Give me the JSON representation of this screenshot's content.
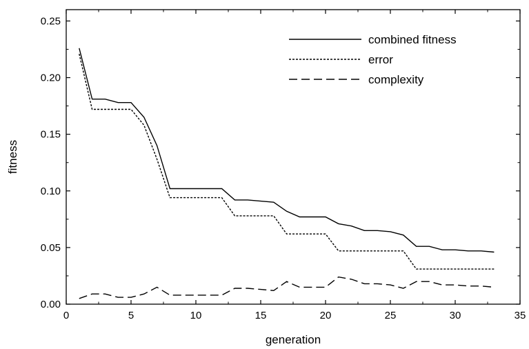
{
  "chart_data": {
    "type": "line",
    "title": "",
    "xlabel": "generation",
    "ylabel": "fitness",
    "xlim": [
      0,
      35
    ],
    "ylim": [
      0,
      0.26
    ],
    "xticks": [
      0,
      5,
      10,
      15,
      20,
      25,
      30,
      35
    ],
    "xtick_labels": [
      "0",
      "5",
      "10",
      "15",
      "20",
      "25",
      "30",
      "35"
    ],
    "yticks": [
      0,
      0.05,
      0.1,
      0.15,
      0.2,
      0.25
    ],
    "ytick_labels": [
      "0.00",
      "0.05",
      "0.10",
      "0.15",
      "0.20",
      "0.25"
    ],
    "grid": false,
    "legend_position": "top-right",
    "x": [
      1,
      2,
      3,
      4,
      5,
      6,
      7,
      8,
      9,
      10,
      11,
      12,
      13,
      14,
      15,
      16,
      17,
      18,
      19,
      20,
      21,
      22,
      23,
      24,
      25,
      26,
      27,
      28,
      29,
      30,
      31,
      32,
      33
    ],
    "series": [
      {
        "name": "combined fitness",
        "style": "solid",
        "color": "#000000",
        "values": [
          0.226,
          0.181,
          0.181,
          0.178,
          0.178,
          0.165,
          0.14,
          0.102,
          0.102,
          0.102,
          0.102,
          0.102,
          0.092,
          0.092,
          0.091,
          0.09,
          0.082,
          0.077,
          0.077,
          0.077,
          0.071,
          0.069,
          0.065,
          0.065,
          0.064,
          0.061,
          0.051,
          0.051,
          0.048,
          0.048,
          0.047,
          0.047,
          0.046
        ]
      },
      {
        "name": "error",
        "style": "dotted",
        "color": "#000000",
        "values": [
          0.221,
          0.172,
          0.172,
          0.172,
          0.172,
          0.158,
          0.128,
          0.094,
          0.094,
          0.094,
          0.094,
          0.094,
          0.078,
          0.078,
          0.078,
          0.078,
          0.062,
          0.062,
          0.062,
          0.062,
          0.047,
          0.047,
          0.047,
          0.047,
          0.047,
          0.047,
          0.031,
          0.031,
          0.031,
          0.031,
          0.031,
          0.031,
          0.031
        ]
      },
      {
        "name": "complexity",
        "style": "dashed",
        "color": "#000000",
        "values": [
          0.005,
          0.009,
          0.009,
          0.006,
          0.006,
          0.009,
          0.015,
          0.008,
          0.008,
          0.008,
          0.008,
          0.008,
          0.014,
          0.014,
          0.013,
          0.012,
          0.02,
          0.015,
          0.015,
          0.015,
          0.024,
          0.022,
          0.018,
          0.018,
          0.017,
          0.014,
          0.02,
          0.02,
          0.017,
          0.017,
          0.016,
          0.016,
          0.015
        ]
      }
    ]
  }
}
